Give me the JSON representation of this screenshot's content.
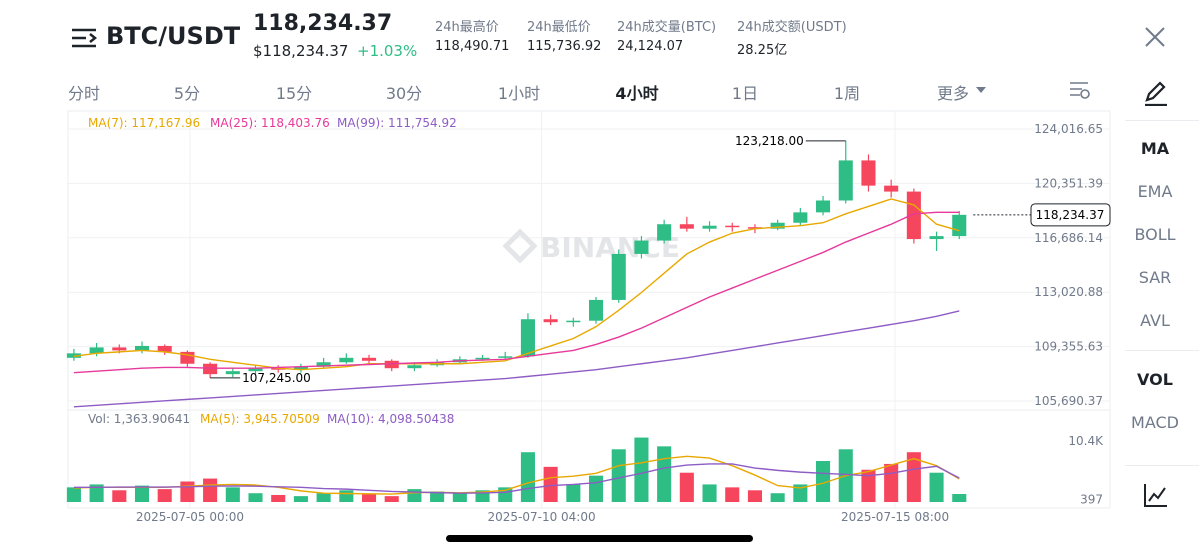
{
  "header": {
    "pair": "BTC/USDT",
    "price": "118,234.37",
    "price_usd": "$118,234.37",
    "change": "+1.03%",
    "stats": [
      {
        "label": "24h最高价",
        "value": "118,490.71"
      },
      {
        "label": "24h最低价",
        "value": "115,736.92"
      },
      {
        "label": "24h成交量(BTC)",
        "value": "24,124.07"
      },
      {
        "label": "24h成交额(USDT)",
        "value": "28.25亿"
      }
    ]
  },
  "tabs": [
    "分时",
    "5分",
    "15分",
    "30分",
    "1小时",
    "4小时",
    "1日",
    "1周",
    "更多"
  ],
  "sidebar": {
    "main": [
      "MA",
      "EMA",
      "BOLL",
      "SAR",
      "AVL"
    ],
    "sub": [
      "VOL",
      "MACD"
    ]
  },
  "chart": {
    "type": "candlestick",
    "watermark": "BINANCE",
    "colors": {
      "up": "#2ebd85",
      "down": "#f6465d"
    },
    "xlim": [
      -0.26,
      45.64
    ],
    "ylim": [
      105286,
      124825
    ],
    "vol_ylim": [
      0,
      14000
    ],
    "yticks": [
      {
        "value": 124016.65,
        "label": "124,016.65"
      },
      {
        "value": 120351.39,
        "label": "120,351.39"
      },
      {
        "value": 116686.14,
        "label": "116,686.14"
      },
      {
        "value": 113020.88,
        "label": "113,020.88"
      },
      {
        "value": 109355.63,
        "label": "109,355.63"
      },
      {
        "value": 105690.37,
        "label": "105,690.37"
      }
    ],
    "vol_ticks": [
      {
        "value": 10400,
        "label": "10.4K"
      },
      {
        "value": 397,
        "label": "397"
      }
    ],
    "xticks": [
      {
        "value": 5.11,
        "label": "2025-07-05 00:00"
      },
      {
        "value": 20.6,
        "label": "2025-07-10 04:00"
      },
      {
        "value": 36.17,
        "label": "2025-07-15 08:00"
      }
    ],
    "candles": [
      [
        108600,
        109200,
        108400,
        108900
      ],
      [
        108900,
        109600,
        108700,
        109300
      ],
      [
        109300,
        109500,
        108900,
        109100
      ],
      [
        109100,
        109700,
        108900,
        109400
      ],
      [
        109400,
        109500,
        108800,
        109000
      ],
      [
        109000,
        109100,
        108000,
        108200
      ],
      [
        108200,
        108300,
        107245,
        107500
      ],
      [
        107500,
        107900,
        107300,
        107700
      ],
      [
        107700,
        108100,
        107500,
        107900
      ],
      [
        107900,
        108100,
        107600,
        107800
      ],
      [
        107800,
        108200,
        107600,
        108000
      ],
      [
        108000,
        108600,
        107900,
        108300
      ],
      [
        108300,
        108900,
        108200,
        108600
      ],
      [
        108600,
        108800,
        108200,
        108400
      ],
      [
        108400,
        108500,
        107700,
        107900
      ],
      [
        107900,
        108300,
        107700,
        108100
      ],
      [
        108100,
        108500,
        108000,
        108300
      ],
      [
        108300,
        108700,
        108200,
        108500
      ],
      [
        108500,
        108800,
        108400,
        108600
      ],
      [
        108600,
        109000,
        108500,
        108700
      ],
      [
        108700,
        111600,
        108600,
        111200
      ],
      [
        111200,
        111500,
        110800,
        111000
      ],
      [
        111000,
        111300,
        110700,
        111100
      ],
      [
        111100,
        112700,
        110900,
        112500
      ],
      [
        112500,
        115900,
        112300,
        115600
      ],
      [
        115600,
        116800,
        115300,
        116500
      ],
      [
        116500,
        117900,
        116300,
        117600
      ],
      [
        117600,
        118100,
        117100,
        117300
      ],
      [
        117300,
        117800,
        117100,
        117500
      ],
      [
        117500,
        117700,
        117100,
        117400
      ],
      [
        117400,
        117600,
        117000,
        117300
      ],
      [
        117300,
        117900,
        117200,
        117700
      ],
      [
        117700,
        118700,
        117500,
        118400
      ],
      [
        118400,
        119500,
        118200,
        119200
      ],
      [
        119200,
        123218,
        119000,
        121900
      ],
      [
        121900,
        122300,
        119800,
        120200
      ],
      [
        120200,
        120600,
        119400,
        119800
      ],
      [
        119800,
        120000,
        116300,
        116600
      ],
      [
        116600,
        117100,
        115800,
        116800
      ],
      [
        116800,
        118500,
        116600,
        118234.37
      ]
    ],
    "volumes": [
      2500,
      3000,
      2000,
      2800,
      2200,
      3500,
      4000,
      2500,
      1500,
      1200,
      1000,
      1500,
      2000,
      1300,
      1000,
      2200,
      1800,
      1500,
      2000,
      2500,
      8500,
      6000,
      3000,
      4500,
      9000,
      11000,
      9500,
      5000,
      3000,
      2500,
      2000,
      1500,
      3000,
      7000,
      9000,
      5500,
      6500,
      8500,
      5000,
      1363.90641
    ],
    "ma": [
      {
        "name": "MA(7): 117,167.96",
        "color": "#e8a800",
        "values": [
          108700,
          108900,
          109000,
          109100,
          109000,
          108800,
          108500,
          108300,
          108100,
          107900,
          107800,
          107900,
          108000,
          108200,
          108200,
          108200,
          108200,
          108200,
          108300,
          108400,
          108900,
          109400,
          109900,
          110700,
          111800,
          113000,
          114300,
          115600,
          116400,
          117000,
          117300,
          117400,
          117500,
          117700,
          118300,
          118800,
          119300,
          118900,
          117600,
          117167.96
        ]
      },
      {
        "name": "MA(25): 118,403.76",
        "color": "#e6399b",
        "values": [
          107600,
          107700,
          107800,
          107900,
          107950,
          107950,
          107900,
          107900,
          107900,
          107950,
          108000,
          108050,
          108100,
          108150,
          108200,
          108250,
          108300,
          108400,
          108450,
          108500,
          108700,
          108900,
          109100,
          109500,
          110000,
          110600,
          111300,
          112000,
          112700,
          113300,
          113900,
          114500,
          115100,
          115700,
          116400,
          117000,
          117600,
          118300,
          118400,
          118403.76
        ]
      },
      {
        "name": "MA(99): 111,754.92",
        "color": "#8e5cc5",
        "values": [
          105300,
          105400,
          105500,
          105600,
          105700,
          105800,
          105900,
          106000,
          106100,
          106200,
          106300,
          106400,
          106500,
          106600,
          106700,
          106800,
          106900,
          107000,
          107100,
          107200,
          107350,
          107500,
          107650,
          107800,
          108000,
          108200,
          108400,
          108600,
          108850,
          109100,
          109350,
          109600,
          109850,
          110100,
          110350,
          110600,
          110850,
          111100,
          111400,
          111754.92
        ]
      }
    ],
    "vol_label": "Vol: 1,363.90641",
    "vol_ma": [
      {
        "name": "MA(5): 3,945.70509",
        "color": "#e8a800",
        "values": [
          2400,
          2500,
          2500,
          2500,
          2500,
          2700,
          2900,
          3000,
          2900,
          2500,
          1900,
          1500,
          1450,
          1400,
          1350,
          1600,
          1650,
          1560,
          1700,
          2000,
          3260,
          4160,
          4400,
          4900,
          6200,
          6700,
          7400,
          7800,
          7500,
          6200,
          4600,
          2800,
          2400,
          3200,
          4500,
          5200,
          6300,
          7400,
          6200,
          3945.70509
        ]
      },
      {
        "name": "MA(10): 4,098.50438",
        "color": "#8e5cc5",
        "values": [
          2500,
          2500,
          2550,
          2550,
          2550,
          2600,
          2700,
          2750,
          2700,
          2600,
          2500,
          2300,
          2200,
          2000,
          1800,
          1700,
          1600,
          1500,
          1550,
          1650,
          2300,
          2800,
          3000,
          3300,
          4100,
          4900,
          5800,
          6300,
          6500,
          6500,
          5800,
          5400,
          5100,
          4900,
          4700,
          4500,
          4900,
          5600,
          6100,
          4098.50438
        ]
      }
    ],
    "high": {
      "value": 123218,
      "label": "123,218.00"
    },
    "low": {
      "value": 107245,
      "label": "107,245.00"
    },
    "last": {
      "value": 118234.37,
      "label": "118,234.37"
    }
  }
}
